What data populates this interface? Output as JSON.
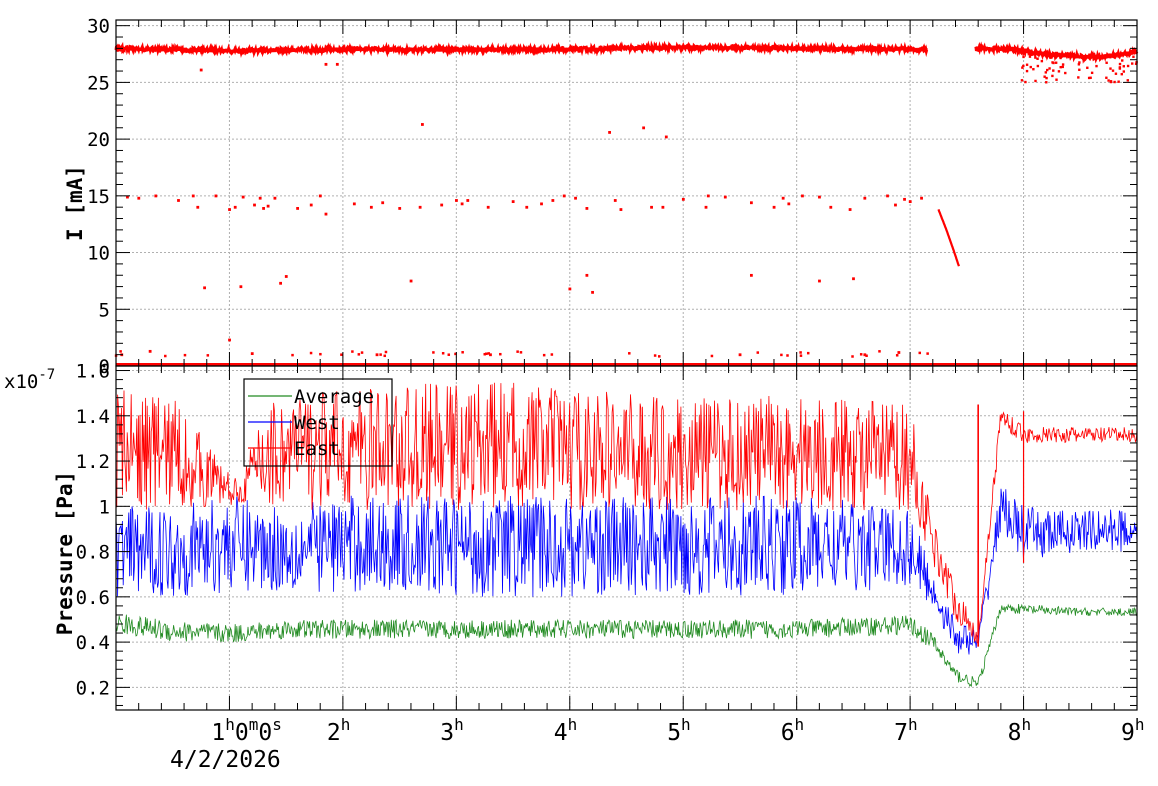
{
  "chart_data": [
    {
      "type": "scatter",
      "ylabel": "I [mA]",
      "ylim": [
        0,
        30.5
      ],
      "yticks": [
        "0",
        "5",
        "10",
        "15",
        "20",
        "25",
        "30"
      ],
      "grid": true,
      "series": [
        {
          "color": "#ff0000",
          "segments": [
            {
              "x": [
                0,
                1,
                2,
                3,
                4,
                5,
                6,
                7,
                7.15
              ],
              "y": [
                28.0,
                27.8,
                27.9,
                27.9,
                27.9,
                28.1,
                28.0,
                27.9,
                27.9
              ]
            },
            {
              "x": [
                7.58,
                7.9,
                8.2,
                8.5,
                8.7,
                9.0
              ],
              "y": [
                28.0,
                27.9,
                27.5,
                27.3,
                27.2,
                27.7
              ]
            },
            {
              "x": [
                7.25,
                7.32,
                7.38,
                7.43
              ],
              "y": [
                13.8,
                12.0,
                10.3,
                8.8
              ]
            }
          ],
          "outliers": [
            {
              "x": 0.1,
              "y": 14.9
            },
            {
              "x": 0.2,
              "y": 14.8
            },
            {
              "x": 0.35,
              "y": 15.0
            },
            {
              "x": 0.55,
              "y": 14.6
            },
            {
              "x": 0.68,
              "y": 15.0
            },
            {
              "x": 0.72,
              "y": 14.0
            },
            {
              "x": 0.88,
              "y": 15.0
            },
            {
              "x": 1.0,
              "y": 13.8
            },
            {
              "x": 1.05,
              "y": 14.0
            },
            {
              "x": 1.12,
              "y": 14.9
            },
            {
              "x": 1.22,
              "y": 14.2
            },
            {
              "x": 1.27,
              "y": 14.8
            },
            {
              "x": 1.3,
              "y": 13.9
            },
            {
              "x": 1.34,
              "y": 14.1
            },
            {
              "x": 1.4,
              "y": 14.8
            },
            {
              "x": 1.6,
              "y": 13.9
            },
            {
              "x": 1.72,
              "y": 14.2
            },
            {
              "x": 1.8,
              "y": 15.0
            },
            {
              "x": 1.85,
              "y": 13.4
            },
            {
              "x": 2.1,
              "y": 14.3
            },
            {
              "x": 2.25,
              "y": 14.0
            },
            {
              "x": 2.35,
              "y": 14.4
            },
            {
              "x": 2.5,
              "y": 13.9
            },
            {
              "x": 2.68,
              "y": 14.0
            },
            {
              "x": 2.87,
              "y": 14.2
            },
            {
              "x": 3.0,
              "y": 14.6
            },
            {
              "x": 3.05,
              "y": 14.3
            },
            {
              "x": 3.1,
              "y": 14.6
            },
            {
              "x": 3.28,
              "y": 14.0
            },
            {
              "x": 3.5,
              "y": 14.5
            },
            {
              "x": 3.62,
              "y": 14.0
            },
            {
              "x": 3.75,
              "y": 14.3
            },
            {
              "x": 3.85,
              "y": 14.6
            },
            {
              "x": 3.95,
              "y": 15.0
            },
            {
              "x": 4.05,
              "y": 14.8
            },
            {
              "x": 4.15,
              "y": 13.9
            },
            {
              "x": 4.4,
              "y": 14.6
            },
            {
              "x": 4.45,
              "y": 13.8
            },
            {
              "x": 4.72,
              "y": 14.0
            },
            {
              "x": 4.82,
              "y": 14.0
            },
            {
              "x": 5.0,
              "y": 14.7
            },
            {
              "x": 5.2,
              "y": 14.0
            },
            {
              "x": 5.22,
              "y": 15.0
            },
            {
              "x": 5.37,
              "y": 14.9
            },
            {
              "x": 5.6,
              "y": 14.4
            },
            {
              "x": 5.8,
              "y": 14.0
            },
            {
              "x": 5.88,
              "y": 14.8
            },
            {
              "x": 5.93,
              "y": 14.3
            },
            {
              "x": 6.05,
              "y": 15.0
            },
            {
              "x": 6.2,
              "y": 14.9
            },
            {
              "x": 6.3,
              "y": 14.0
            },
            {
              "x": 6.47,
              "y": 13.8
            },
            {
              "x": 6.6,
              "y": 14.8
            },
            {
              "x": 6.8,
              "y": 15.0
            },
            {
              "x": 6.87,
              "y": 14.2
            },
            {
              "x": 6.95,
              "y": 14.7
            },
            {
              "x": 7.0,
              "y": 14.5
            },
            {
              "x": 7.1,
              "y": 14.8
            },
            {
              "x": 0.78,
              "y": 6.9
            },
            {
              "x": 1.1,
              "y": 7.0
            },
            {
              "x": 1.45,
              "y": 7.3
            },
            {
              "x": 1.5,
              "y": 7.9
            },
            {
              "x": 2.6,
              "y": 7.5
            },
            {
              "x": 4.0,
              "y": 6.8
            },
            {
              "x": 4.15,
              "y": 8.0
            },
            {
              "x": 4.2,
              "y": 6.5
            },
            {
              "x": 5.6,
              "y": 8.0
            },
            {
              "x": 6.2,
              "y": 7.5
            },
            {
              "x": 6.5,
              "y": 7.7
            },
            {
              "x": 2.7,
              "y": 21.3
            },
            {
              "x": 4.35,
              "y": 20.6
            },
            {
              "x": 4.65,
              "y": 21.0
            },
            {
              "x": 4.85,
              "y": 20.2
            },
            {
              "x": 0.75,
              "y": 26.1
            },
            {
              "x": 1.85,
              "y": 26.6
            },
            {
              "x": 1.95,
              "y": 26.6
            },
            {
              "x": 1.0,
              "y": 2.3
            },
            {
              "x": 0.05,
              "y": 1.0
            },
            {
              "x": 0.3,
              "y": 1.3
            },
            {
              "x": 1.2,
              "y": 1.1
            },
            {
              "x": 2.3,
              "y": 1.0
            },
            {
              "x": 3.3,
              "y": 1.0
            },
            {
              "x": 5.5,
              "y": 1.0
            },
            {
              "x": 6.6,
              "y": 1.0
            },
            {
              "x": 6.9,
              "y": 1.2
            }
          ]
        }
      ]
    },
    {
      "type": "line",
      "title": "",
      "ylabel": "Pressure [Pa]",
      "yexponent": "x10",
      "yexponent_power": "-7",
      "ylim": [
        0.1,
        1.62
      ],
      "yticks": [
        "0.2",
        "0.4",
        "0.6",
        "0.8",
        "1",
        "1.2",
        "1.4",
        "1.6"
      ],
      "xlim": [
        0,
        9
      ],
      "xticks": [
        {
          "x": 1,
          "main": "1",
          "sup": "h",
          "extra": "0",
          "sup2": "m",
          "extra2": "0",
          "sup3": "s"
        },
        {
          "x": 2,
          "main": "2",
          "sup": "h"
        },
        {
          "x": 3,
          "main": "3",
          "sup": "h"
        },
        {
          "x": 4,
          "main": "4",
          "sup": "h"
        },
        {
          "x": 5,
          "main": "5",
          "sup": "h"
        },
        {
          "x": 6,
          "main": "6",
          "sup": "h"
        },
        {
          "x": 7,
          "main": "7",
          "sup": "h"
        },
        {
          "x": 8,
          "main": "8",
          "sup": "h"
        },
        {
          "x": 9,
          "main": "9",
          "sup": "h"
        }
      ],
      "xdate": "4/2/2026",
      "grid": true,
      "legend_position": "top-left",
      "series": [
        {
          "name": "Average",
          "color": "#228b22",
          "x": [
            0,
            0.5,
            1,
            1.5,
            2,
            3,
            4,
            5,
            6,
            7,
            7.2,
            7.4,
            7.6,
            7.8,
            8,
            8.5,
            9
          ],
          "lo": [
            0.4,
            0.36,
            0.36,
            0.38,
            0.38,
            0.38,
            0.38,
            0.38,
            0.38,
            0.4,
            0.33,
            0.2,
            0.17,
            0.52,
            0.5,
            0.5,
            0.5
          ],
          "hi": [
            0.55,
            0.52,
            0.5,
            0.52,
            0.52,
            0.52,
            0.52,
            0.52,
            0.52,
            0.54,
            0.46,
            0.3,
            0.25,
            0.58,
            0.58,
            0.56,
            0.56
          ]
        },
        {
          "name": "West",
          "color": "#0000ff",
          "x": [
            0,
            0.5,
            1,
            1.5,
            2,
            3,
            4,
            5,
            6,
            7,
            7.2,
            7.4,
            7.6,
            7.8,
            8,
            8.5,
            9
          ],
          "lo": [
            0.6,
            0.6,
            0.62,
            0.62,
            0.62,
            0.6,
            0.6,
            0.6,
            0.6,
            0.64,
            0.55,
            0.35,
            0.34,
            0.9,
            0.75,
            0.8,
            0.8
          ],
          "hi": [
            1.0,
            1.0,
            1.05,
            1.0,
            1.05,
            1.05,
            1.05,
            1.05,
            1.05,
            1.0,
            0.7,
            0.5,
            0.45,
            1.1,
            1.0,
            0.98,
            1.0
          ]
        },
        {
          "name": "East",
          "color": "#ff0000",
          "x": [
            0,
            0.5,
            1,
            1.1,
            1.3,
            1.5,
            2,
            3,
            3.5,
            4,
            5,
            6,
            7,
            7.2,
            7.4,
            7.6,
            7.8,
            8,
            8.5,
            9
          ],
          "lo": [
            0.98,
            0.98,
            1.0,
            1.02,
            0.98,
            0.98,
            0.98,
            0.98,
            1.0,
            0.98,
            0.98,
            0.98,
            0.98,
            0.75,
            0.5,
            0.38,
            1.35,
            1.28,
            1.28,
            1.28
          ],
          "hi": [
            1.52,
            1.5,
            1.15,
            1.1,
            1.48,
            1.5,
            1.52,
            1.55,
            1.55,
            1.52,
            1.48,
            1.5,
            1.45,
            0.95,
            0.65,
            0.45,
            1.45,
            1.35,
            1.35,
            1.35
          ]
        }
      ]
    }
  ]
}
